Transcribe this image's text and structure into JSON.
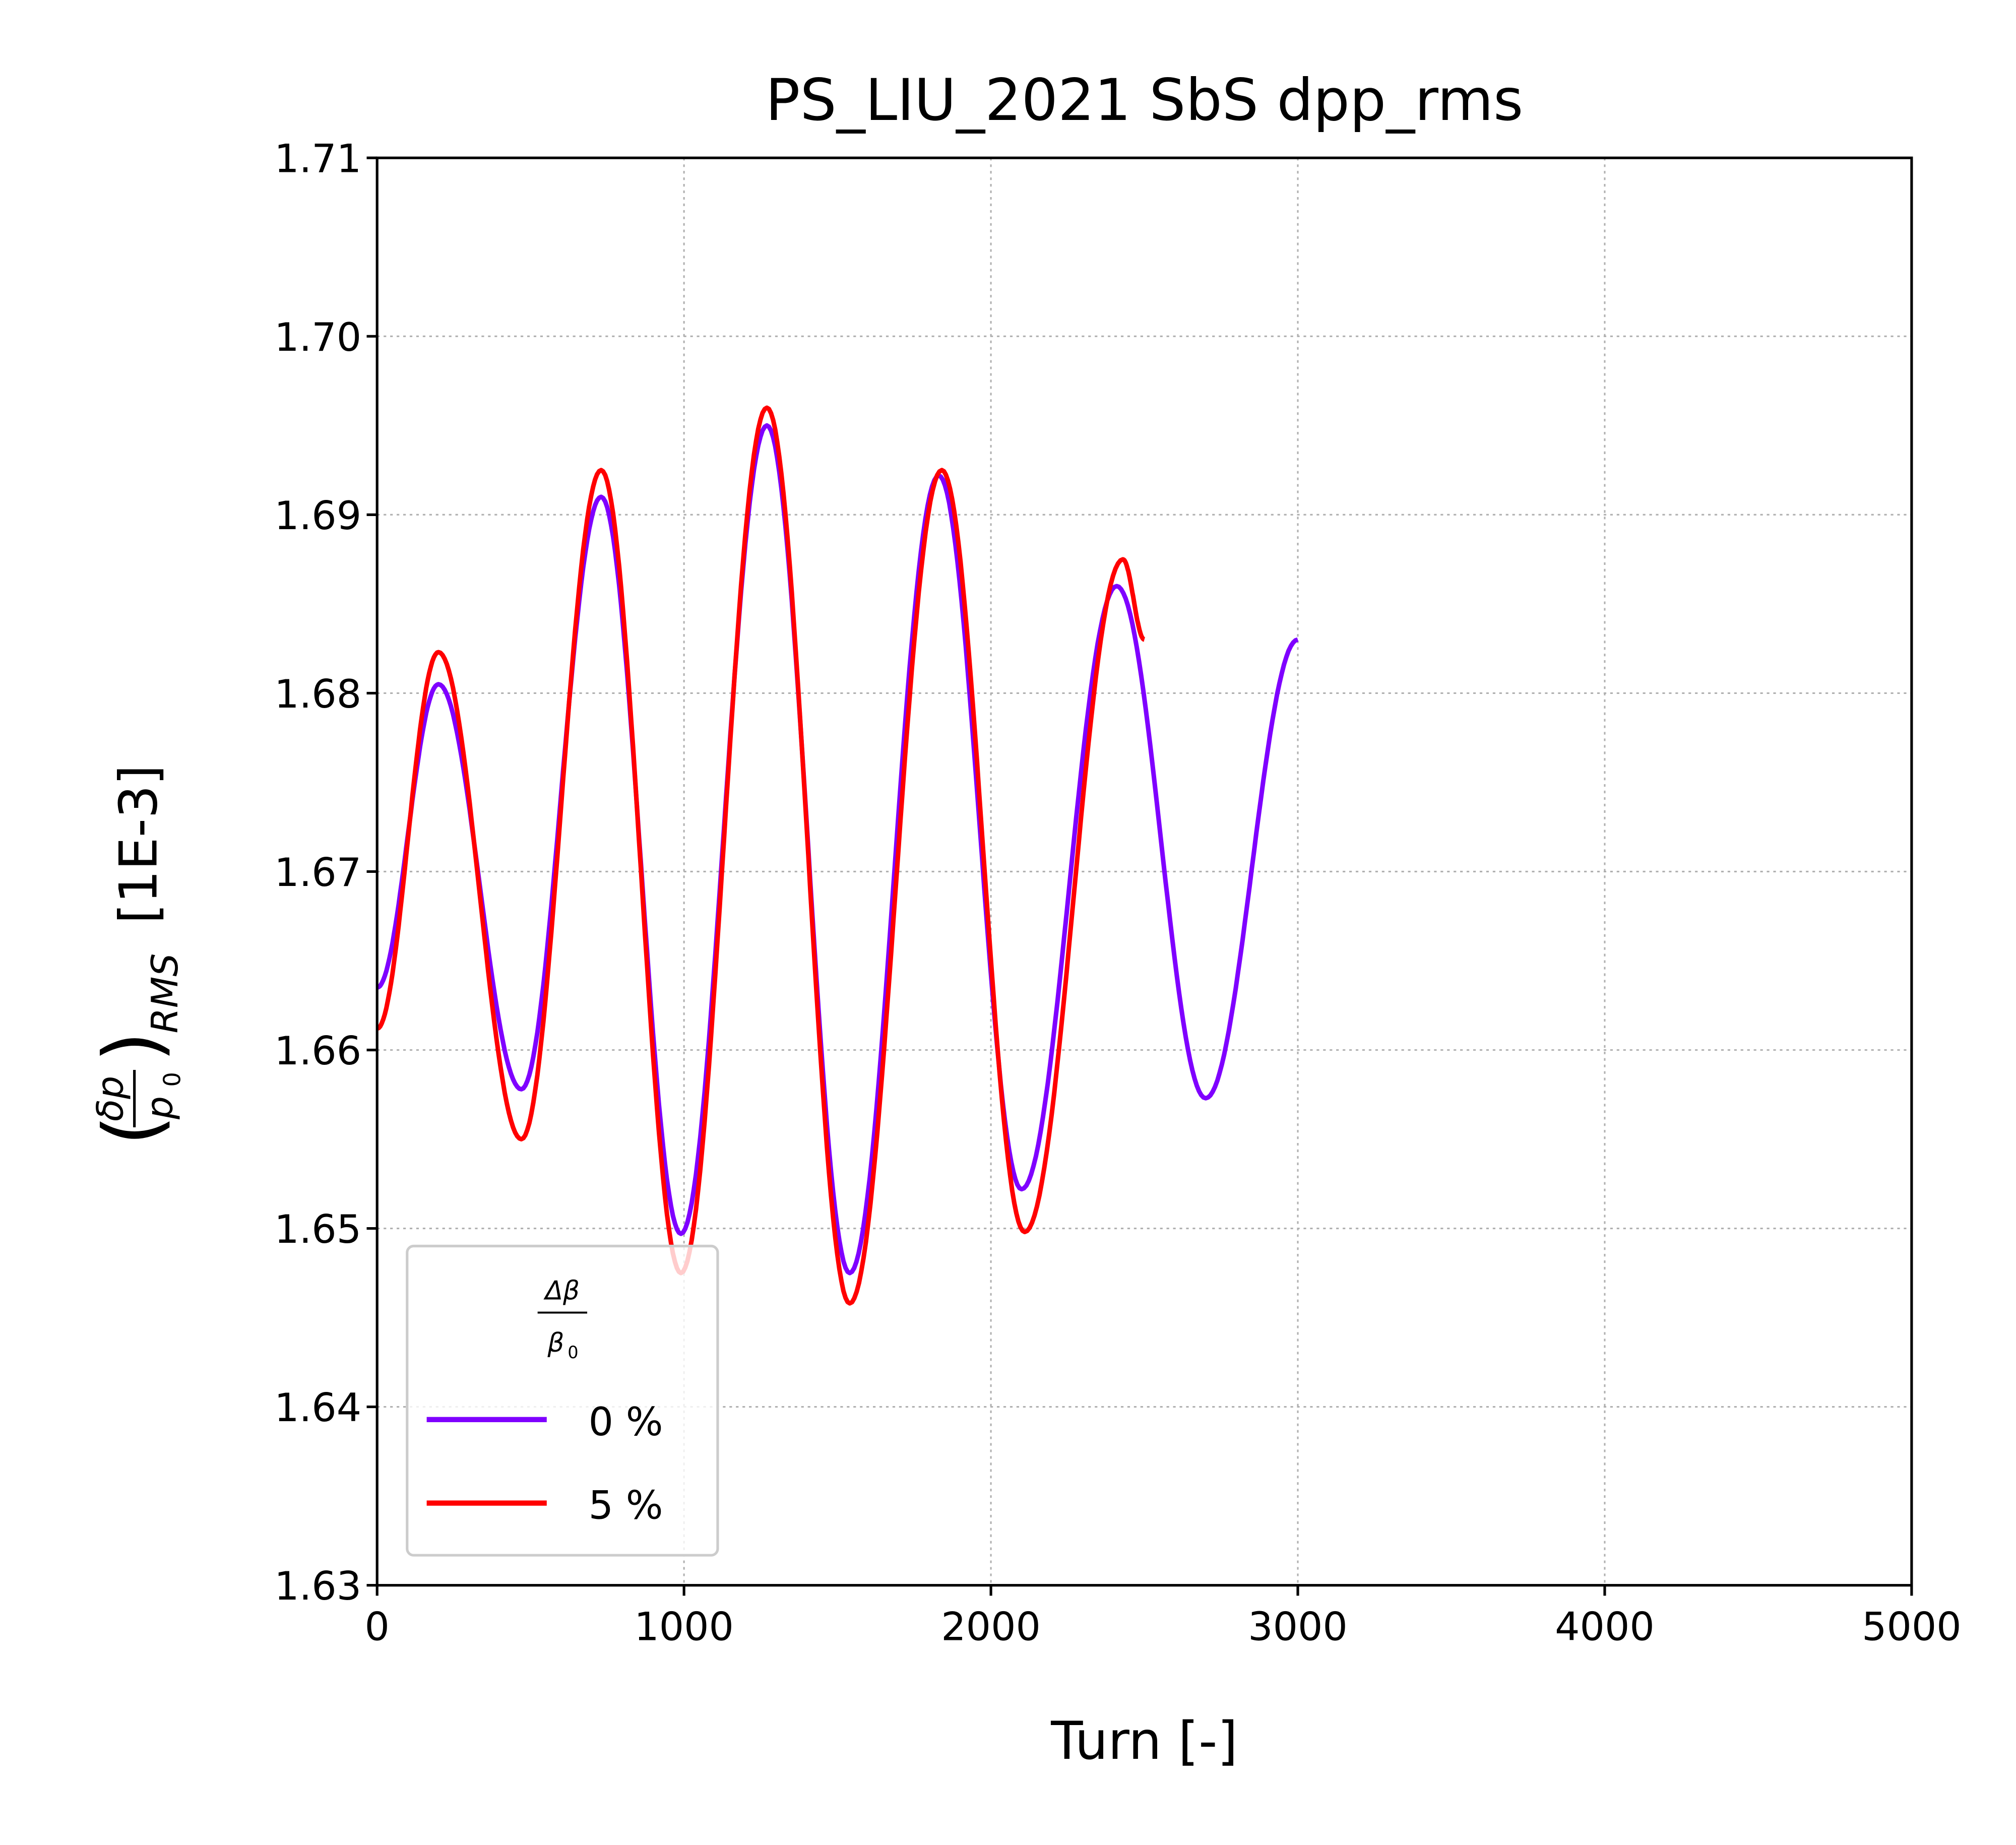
{
  "chart_data": {
    "type": "line",
    "title": "PS_LIU_2021 SbS dpp_rms",
    "xlabel": "Turn [-]",
    "ylabel_unit": "[1E-3]",
    "ylabel_symbol": {
      "numerator": "δp",
      "denominator": "p",
      "denominator_sub": "0",
      "subscript": "RMS"
    },
    "xlim": [
      0,
      5000
    ],
    "ylim": [
      1.63,
      1.71
    ],
    "xticks": [
      "0",
      "1000",
      "2000",
      "3000",
      "4000",
      "5000"
    ],
    "yticks": [
      "1.63",
      "1.64",
      "1.65",
      "1.66",
      "1.67",
      "1.68",
      "1.69",
      "1.70",
      "1.71"
    ],
    "grid": true,
    "legend_position": "lower-left",
    "legend_title": {
      "numerator": "Δβ",
      "denominator": "β",
      "denominator_sub": "0"
    },
    "series": [
      {
        "name": "0 %",
        "color": "#7f00ff",
        "x": [
          0,
          200,
          470,
          730,
          990,
          1270,
          1540,
          1830,
          2100,
          2410,
          2700,
          3000
        ],
        "y": [
          1.6635,
          1.6805,
          1.6578,
          1.691,
          1.6497,
          1.695,
          1.6475,
          1.6922,
          1.6522,
          1.686,
          1.6573,
          1.683
        ]
      },
      {
        "name": "5 %",
        "color": "#ff0000",
        "x": [
          0,
          200,
          470,
          730,
          990,
          1270,
          1540,
          1840,
          2110,
          2430,
          2500
        ],
        "y": [
          1.6612,
          1.6823,
          1.655,
          1.6925,
          1.6475,
          1.696,
          1.6458,
          1.6925,
          1.6498,
          1.6875,
          1.683
        ]
      }
    ]
  }
}
